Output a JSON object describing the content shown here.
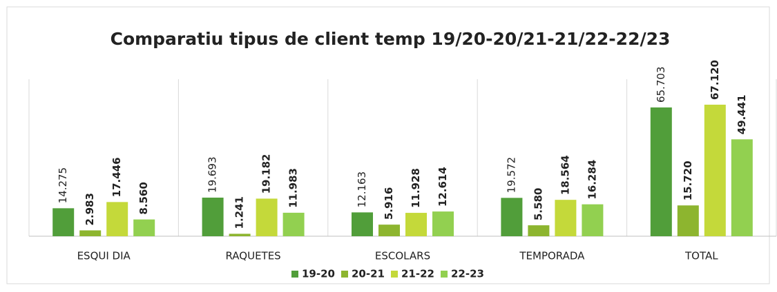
{
  "chart_data": {
    "type": "bar",
    "title": "Comparatiu tipus de  client temp 19/20-20/21-21/22-22/23",
    "categories": [
      "ESQUI DIA",
      "RAQUETES",
      "ESCOLARS",
      "TEMPORADA",
      "TOTAL"
    ],
    "series": [
      {
        "name": "19-20",
        "color": "#519e3a",
        "values": [
          14275,
          19693,
          12163,
          19572,
          65703
        ],
        "value_labels": [
          "14.275",
          "19.693",
          "12.163",
          "19.572",
          "65.703"
        ]
      },
      {
        "name": "20-21",
        "color": "#8db52f",
        "values": [
          2983,
          1241,
          5916,
          5580,
          15720
        ],
        "value_labels": [
          "2.983",
          "1.241",
          "5.916",
          "5.580",
          "15.720"
        ]
      },
      {
        "name": "21-22",
        "color": "#c4d93a",
        "values": [
          17446,
          19182,
          11928,
          18564,
          67120
        ],
        "value_labels": [
          "17.446",
          "19.182",
          "11.928",
          "18.564",
          "67.120"
        ]
      },
      {
        "name": "22-23",
        "color": "#92d050",
        "values": [
          8560,
          11983,
          12614,
          16284,
          49441
        ],
        "value_labels": [
          "8.560",
          "11.983",
          "12.614",
          "16.284",
          "49.441"
        ]
      }
    ]
  }
}
